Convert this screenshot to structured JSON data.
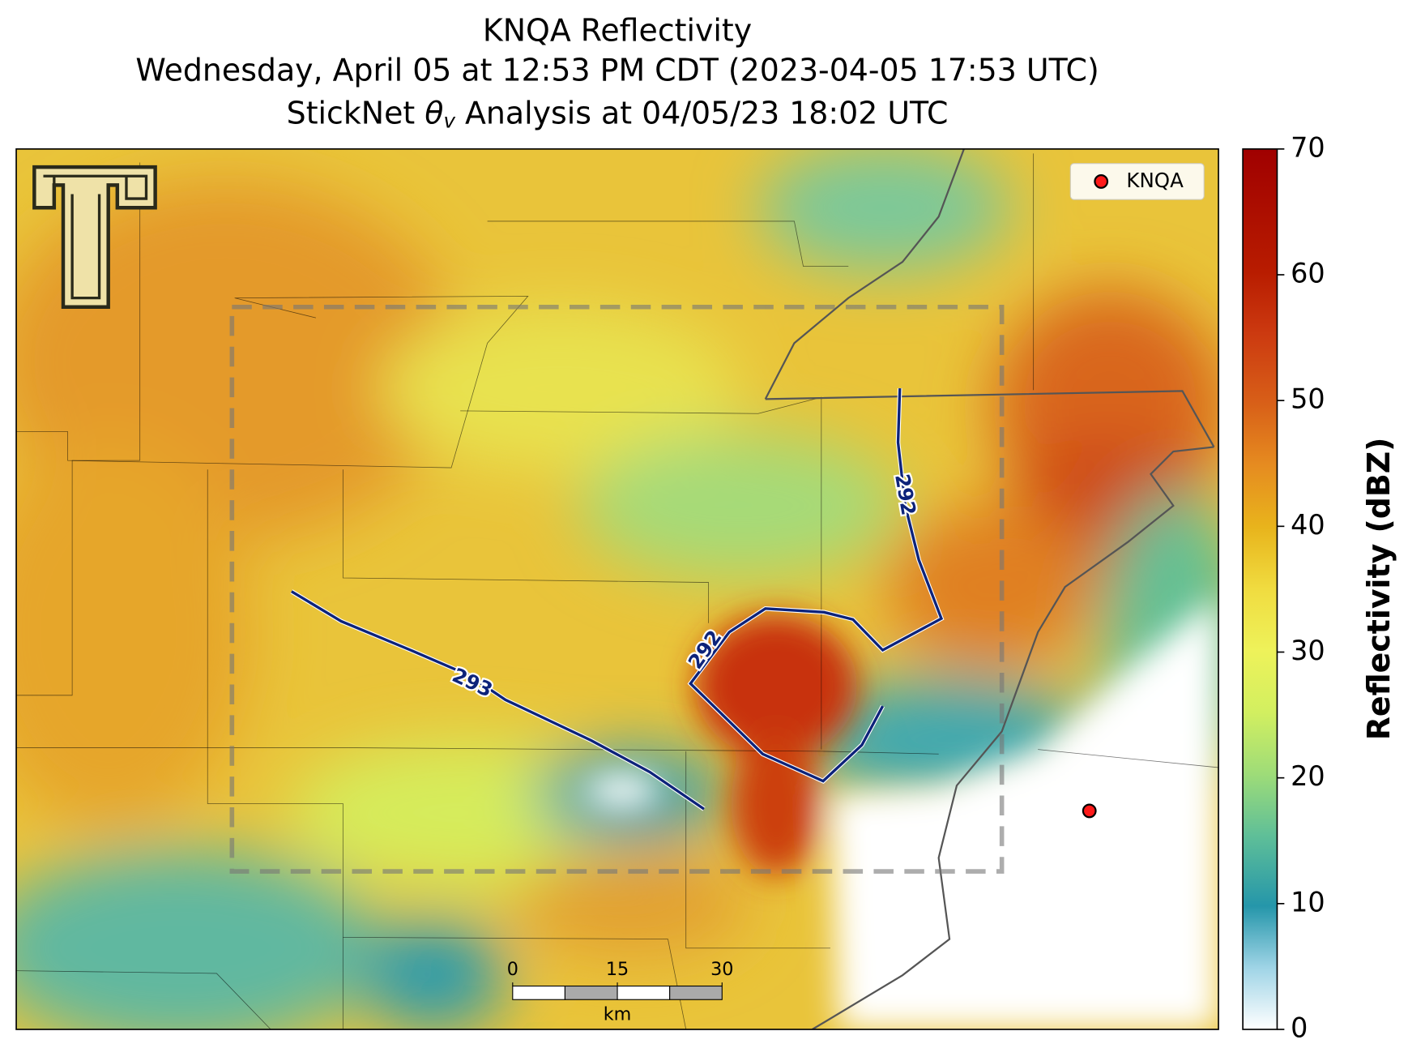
{
  "title": {
    "line1": "KNQA Reflectivity",
    "line2": "Wednesday, April 05 at 12:53 PM CDT (2023-04-05 17:53 UTC)",
    "line3": {
      "before": "StickNet ",
      "symbol": "θ",
      "subscript": "v",
      "after": " Analysis at 04/05/23 18:02 UTC"
    }
  },
  "colorbar": {
    "label": "Reflectivity (dBZ)",
    "lim": [
      0,
      70
    ],
    "ticks": [
      0,
      10,
      20,
      30,
      40,
      50,
      60,
      70
    ]
  },
  "legend": {
    "label": "KNQA",
    "color": "#ff1a1a"
  },
  "contours": [
    {
      "level": 293,
      "labels": [
        293
      ]
    },
    {
      "level": 292,
      "labels": [
        292,
        292
      ]
    }
  ],
  "scalebar": {
    "ticks": [
      0,
      15,
      30
    ],
    "lim": [
      0,
      30
    ],
    "unit": "km"
  }
}
